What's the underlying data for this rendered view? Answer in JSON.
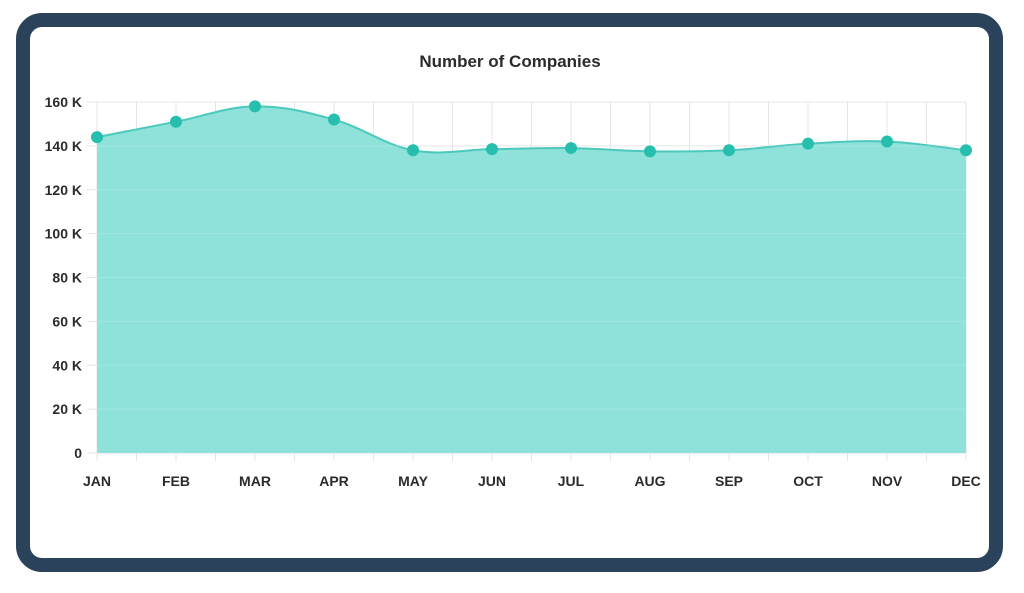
{
  "chart_data": {
    "type": "area",
    "title": "Number of Companies",
    "categories": [
      "JAN",
      "FEB",
      "MAR",
      "APR",
      "MAY",
      "JUN",
      "JUL",
      "AUG",
      "SEP",
      "OCT",
      "NOV",
      "DEC"
    ],
    "values": [
      144000,
      151000,
      158000,
      152000,
      138000,
      138500,
      139000,
      137500,
      138000,
      141000,
      142000,
      138000
    ],
    "ylim": [
      0,
      160000
    ],
    "yticks": [
      0,
      20000,
      40000,
      60000,
      80000,
      100000,
      120000,
      140000,
      160000
    ],
    "ytick_labels": [
      "0",
      "20 K",
      "40 K",
      "60 K",
      "80 K",
      "100 K",
      "120 K",
      "140 K",
      "160 K"
    ],
    "grid": true,
    "fill_color": "#8ee2da",
    "line_color": "#4cc9bd",
    "marker_color": "#26bfae"
  }
}
